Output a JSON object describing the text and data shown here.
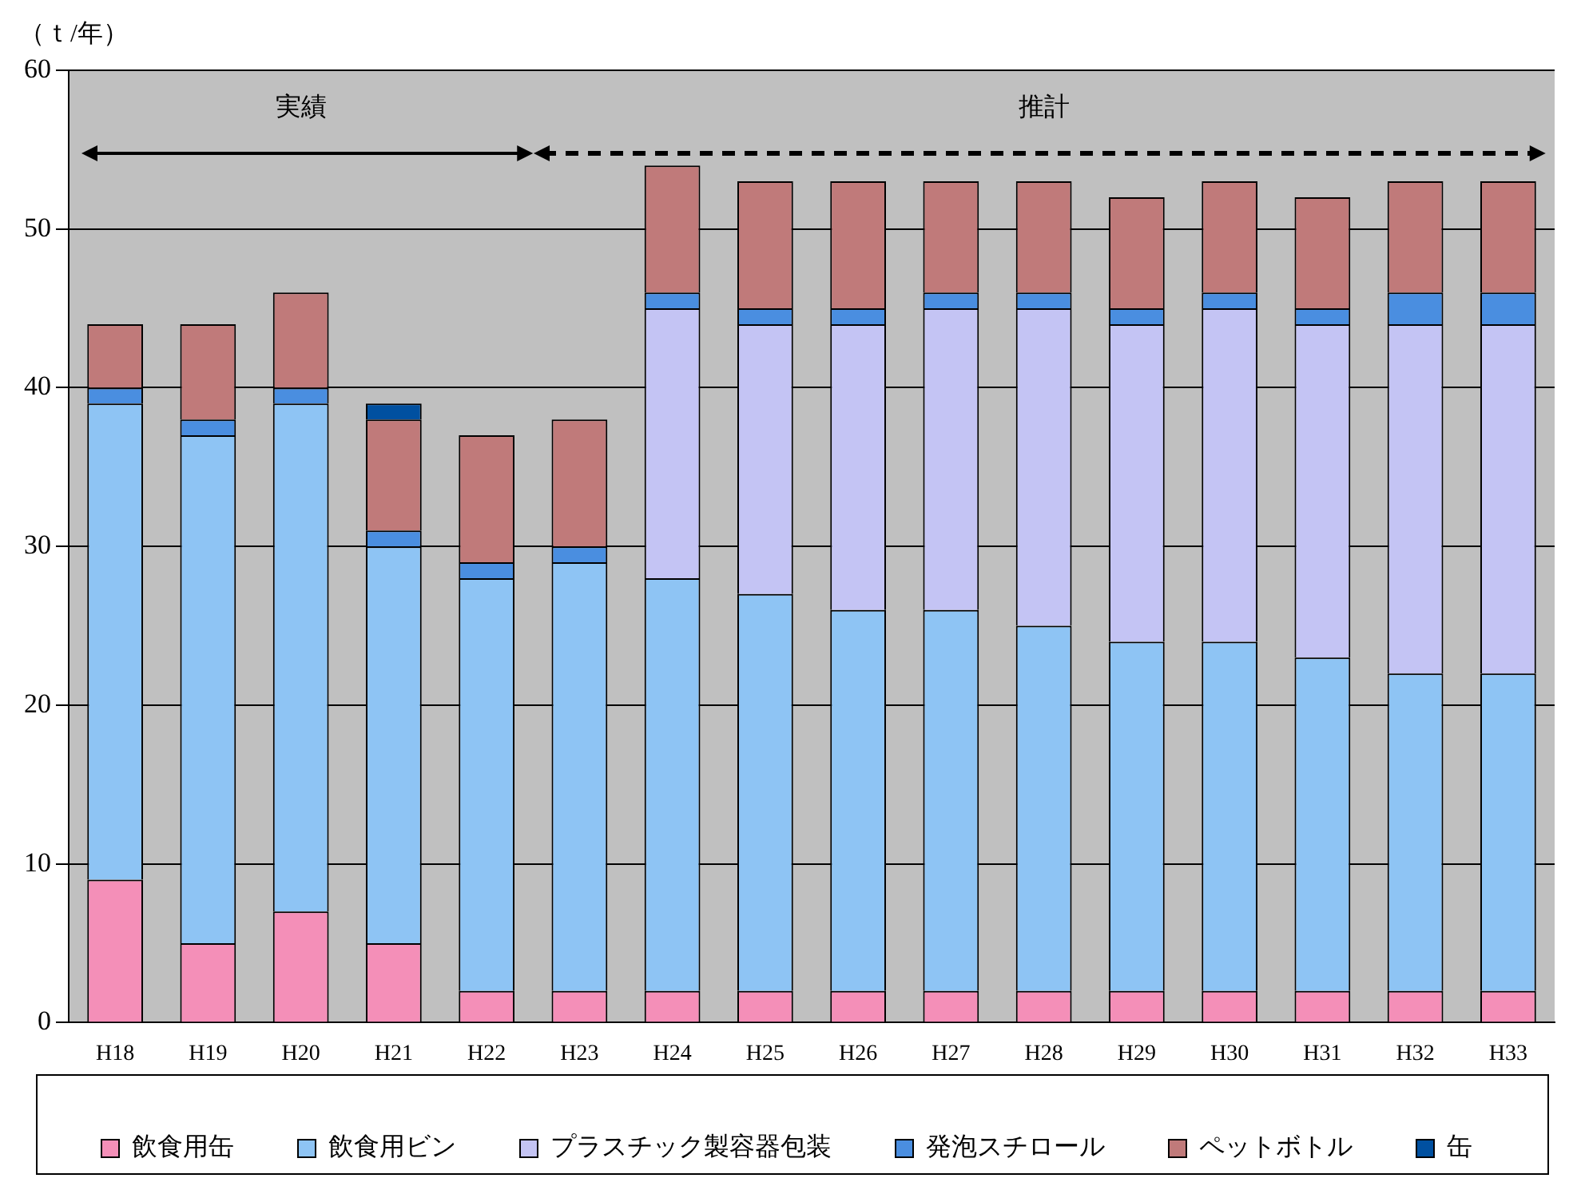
{
  "chart_data": {
    "type": "bar",
    "stacked": true,
    "ylabel": "（ｔ/年）",
    "categories": [
      "H18",
      "H19",
      "H20",
      "H21",
      "H22",
      "H23",
      "H24",
      "H25",
      "H26",
      "H27",
      "H28",
      "H29",
      "H30",
      "H31",
      "H32",
      "H33"
    ],
    "series": [
      {
        "name": "飲食用缶",
        "color": "#f48fb8",
        "values": [
          9,
          5,
          7,
          5,
          2,
          2,
          2,
          2,
          2,
          2,
          2,
          2,
          2,
          2,
          2,
          2
        ]
      },
      {
        "name": "飲食用ビン",
        "color": "#8ec4f4",
        "values": [
          30,
          32,
          32,
          25,
          26,
          27,
          26,
          25,
          24,
          24,
          23,
          22,
          22,
          21,
          20,
          20
        ]
      },
      {
        "name": "プラスチック製容器包装",
        "color": "#c4c4f4",
        "values": [
          0,
          0,
          0,
          0,
          0,
          0,
          17,
          17,
          18,
          19,
          20,
          20,
          21,
          21,
          22,
          22
        ]
      },
      {
        "name": "発泡スチロール",
        "color": "#4a8ee0",
        "values": [
          1,
          1,
          1,
          1,
          1,
          1,
          1,
          1,
          1,
          1,
          1,
          1,
          1,
          1,
          2,
          2
        ]
      },
      {
        "name": "ペットボトル",
        "color": "#c07a7a",
        "values": [
          4,
          6,
          6,
          7,
          8,
          8,
          8,
          8,
          8,
          7,
          7,
          7,
          7,
          7,
          7,
          7
        ]
      },
      {
        "name": "缶",
        "color": "#0050a0",
        "values": [
          0,
          0,
          0,
          1,
          0,
          0,
          0,
          0,
          0,
          0,
          0,
          0,
          0,
          0,
          0,
          0
        ]
      }
    ],
    "annotations": [
      "実績",
      "推計"
    ],
    "ylim": [
      0,
      60
    ],
    "yticks": [
      0,
      10,
      20,
      30,
      40,
      50,
      60
    ],
    "grid": "y",
    "legend": "bottom"
  }
}
